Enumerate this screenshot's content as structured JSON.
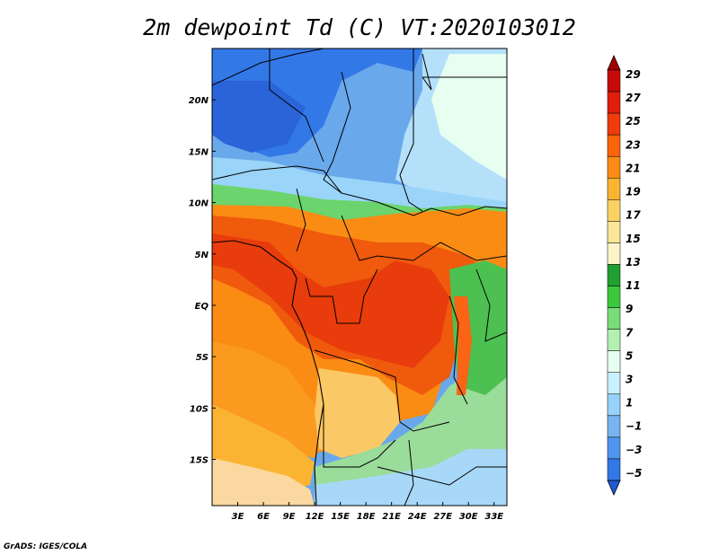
{
  "title": "2m dewpoint Td (C) VT:2020103012",
  "credit": "GrADS: IGES/COLA",
  "map": {
    "lon_range": [
      0,
      34.5
    ],
    "lat_range": [
      -19.5,
      25
    ],
    "lon_ticks": [
      {
        "value": 3,
        "label": "3E"
      },
      {
        "value": 6,
        "label": "6E"
      },
      {
        "value": 9,
        "label": "9E"
      },
      {
        "value": 12,
        "label": "12E"
      },
      {
        "value": 15,
        "label": "15E"
      },
      {
        "value": 18,
        "label": "18E"
      },
      {
        "value": 21,
        "label": "21E"
      },
      {
        "value": 24,
        "label": "24E"
      },
      {
        "value": 27,
        "label": "27E"
      },
      {
        "value": 30,
        "label": "30E"
      },
      {
        "value": 33,
        "label": "33E"
      }
    ],
    "lat_ticks": [
      {
        "value": 20,
        "label": "20N"
      },
      {
        "value": 15,
        "label": "15N"
      },
      {
        "value": 10,
        "label": "10N"
      },
      {
        "value": 5,
        "label": "5N"
      },
      {
        "value": 0,
        "label": "EQ"
      },
      {
        "value": -5,
        "label": "5S"
      },
      {
        "value": -10,
        "label": "10S"
      },
      {
        "value": -15,
        "label": "15S"
      }
    ]
  },
  "colorbar": {
    "labels": [
      "29",
      "27",
      "25",
      "23",
      "21",
      "19",
      "17",
      "15",
      "13",
      "11",
      "9",
      "7",
      "5",
      "3",
      "1",
      "−1",
      "−3",
      "−5"
    ],
    "colors": [
      "#a50000",
      "#c80a0a",
      "#e11e0a",
      "#f03c0a",
      "#fa640a",
      "#fa8c14",
      "#fab432",
      "#fad264",
      "#fae696",
      "#faf5c8",
      "#1fa030",
      "#3cc83c",
      "#78dc78",
      "#b4f0b4",
      "#e6fff0",
      "#c8f0ff",
      "#96d2fa",
      "#78b4f0",
      "#5096f0",
      "#3278e6",
      "#1e5ad2"
    ],
    "levels": [
      29,
      27,
      25,
      23,
      21,
      19,
      17,
      15,
      13,
      11,
      9,
      7,
      5,
      3,
      1,
      -1,
      -3,
      -5
    ]
  }
}
